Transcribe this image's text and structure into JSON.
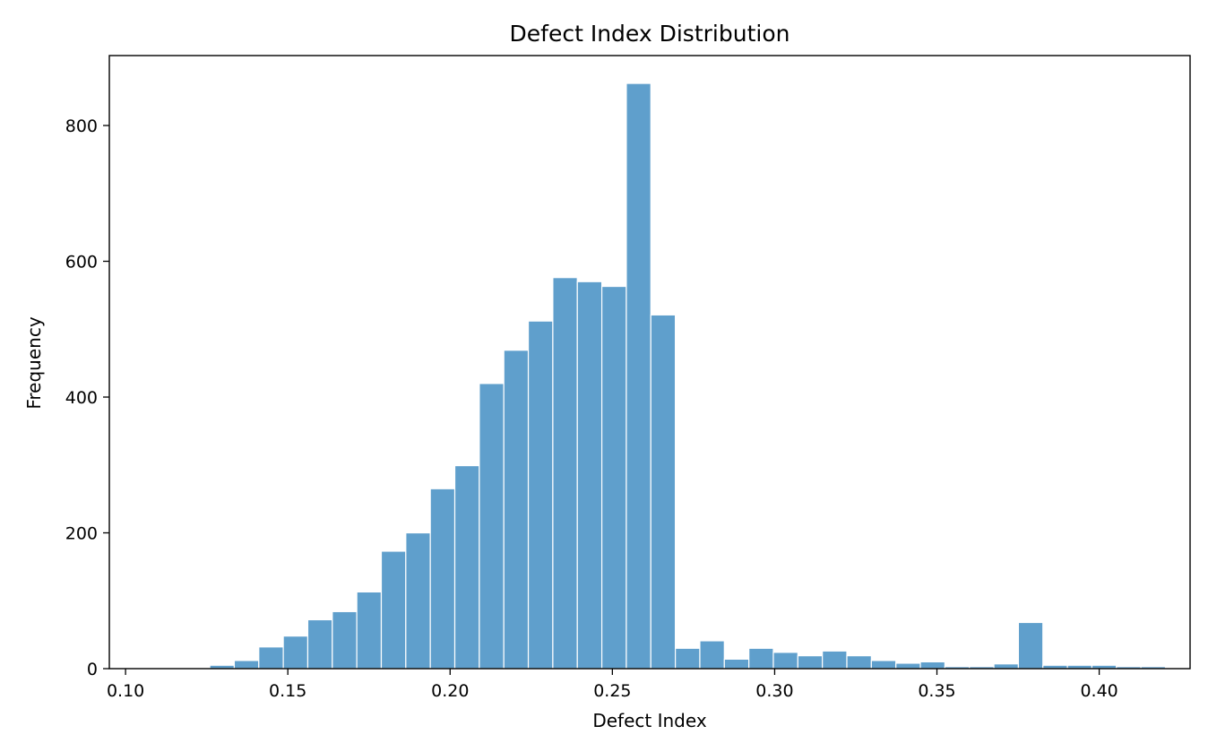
{
  "chart_data": {
    "type": "bar",
    "title": "Defect Index Distribution",
    "xlabel": "Defect Index",
    "ylabel": "Frequency",
    "xlim": [
      0.095,
      0.428
    ],
    "ylim": [
      0,
      903
    ],
    "xticks": [
      0.1,
      0.15,
      0.2,
      0.25,
      0.3,
      0.35,
      0.4
    ],
    "xtick_labels": [
      "0.10",
      "0.15",
      "0.20",
      "0.25",
      "0.30",
      "0.35",
      "0.40"
    ],
    "yticks": [
      0,
      200,
      400,
      600,
      800
    ],
    "ytick_labels": [
      "0",
      "200",
      "400",
      "600",
      "800"
    ],
    "bar_color": "#5f9fcc",
    "bin_start": 0.1033,
    "bin_width": 0.00755,
    "counts": [
      1,
      1,
      1,
      5,
      12,
      32,
      48,
      72,
      84,
      113,
      173,
      200,
      265,
      299,
      420,
      469,
      512,
      576,
      570,
      563,
      862,
      521,
      30,
      41,
      14,
      30,
      24,
      19,
      26,
      19,
      12,
      8,
      10,
      3,
      3,
      7,
      68,
      5,
      5,
      5,
      3,
      3
    ],
    "grid": false
  }
}
